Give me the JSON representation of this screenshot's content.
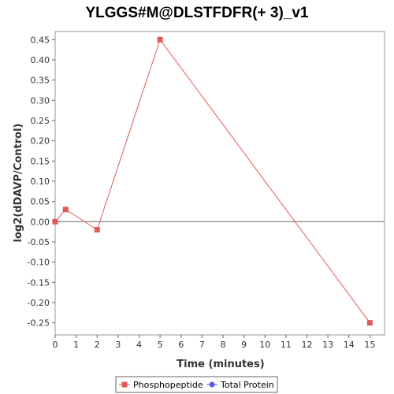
{
  "chart_data": {
    "type": "line",
    "title": "YLGGS#M@DLSTFDFR(+ 3)_v1",
    "xlabel": "Time (minutes)",
    "ylabel": "log2(dDAVP/Control)",
    "xlim": [
      0,
      15.7
    ],
    "ylim": [
      -0.28,
      0.47
    ],
    "xticks": [
      0,
      1,
      2,
      3,
      4,
      5,
      6,
      7,
      8,
      9,
      10,
      11,
      12,
      13,
      14,
      15
    ],
    "yticks": [
      -0.25,
      -0.2,
      -0.15,
      -0.1,
      -0.05,
      0.0,
      0.05,
      0.1,
      0.15,
      0.2,
      0.25,
      0.3,
      0.35,
      0.4,
      0.45
    ],
    "ytick_labels": [
      "-0.25",
      "-0.20",
      "-0.15",
      "-0.10",
      "-0.05",
      "0.00",
      "0.05",
      "0.10",
      "0.15",
      "0.20",
      "0.25",
      "0.30",
      "0.35",
      "0.40",
      "0.45"
    ],
    "zero_line": true,
    "grid": false,
    "legend_position": "bottom",
    "series": [
      {
        "name": "Phosphopeptide",
        "color": "#e05a5a",
        "marker": "square",
        "x": [
          0,
          0.5,
          2,
          5,
          15
        ],
        "y": [
          0.0,
          0.03,
          -0.02,
          0.45,
          -0.25
        ]
      },
      {
        "name": "Total Protein",
        "color": "#5a5ae0",
        "marker": "circle",
        "x": [],
        "y": []
      }
    ]
  }
}
